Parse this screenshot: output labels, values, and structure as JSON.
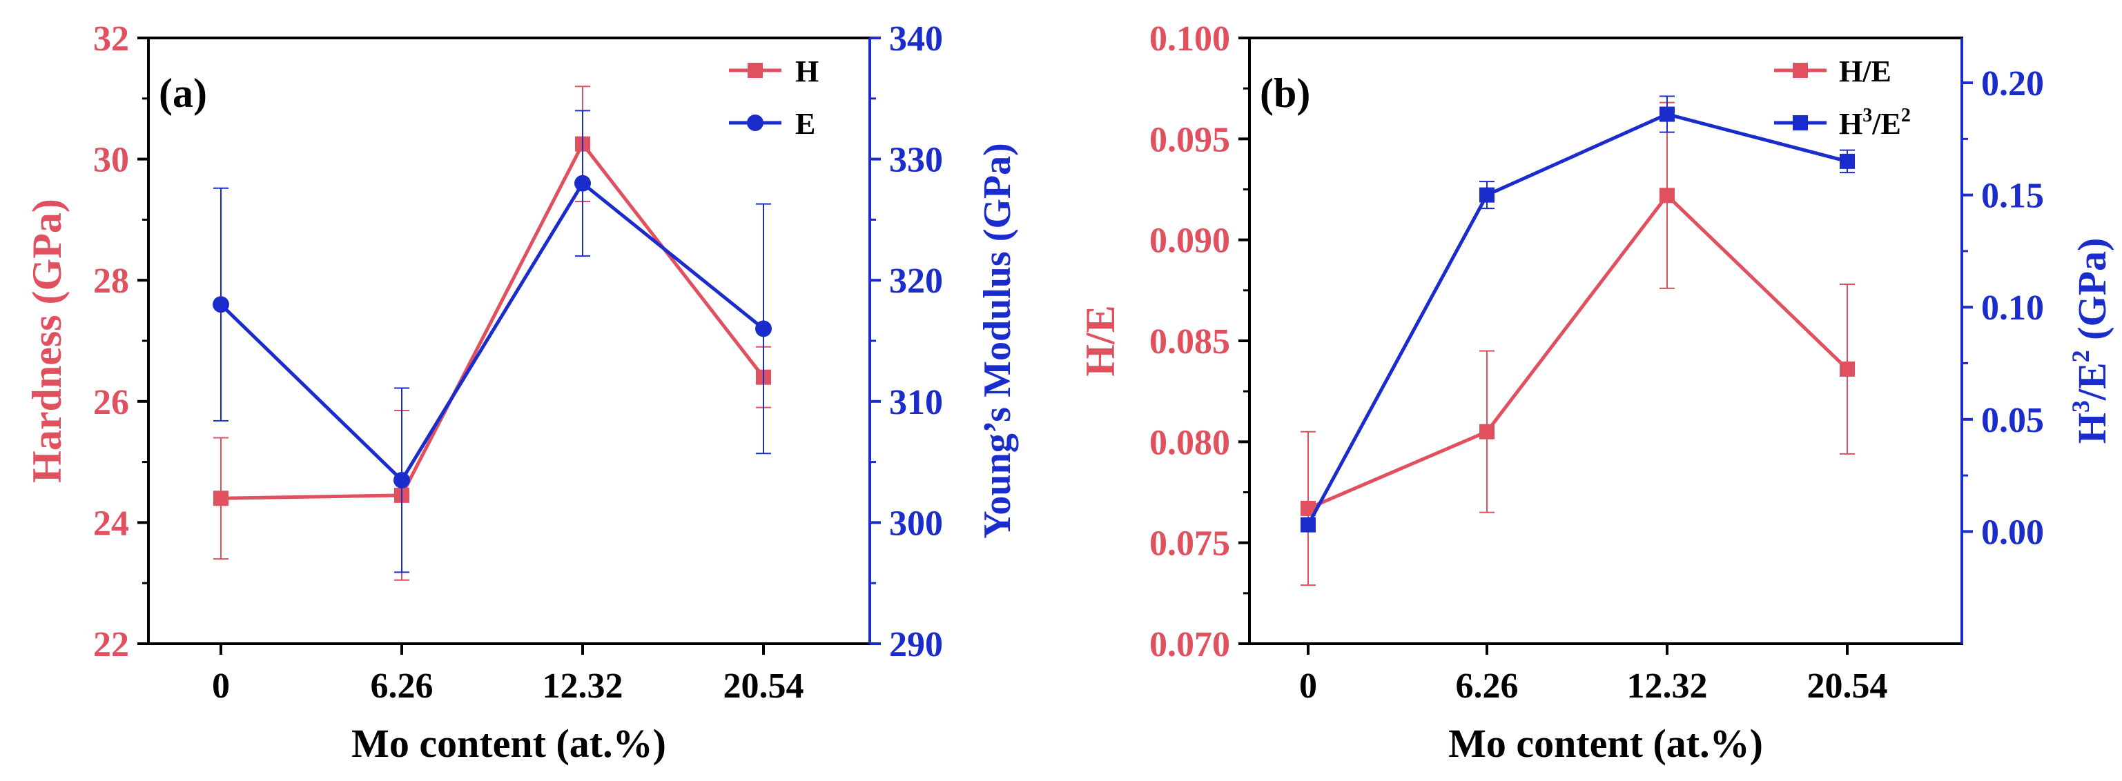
{
  "colors": {
    "red": "#e0505f",
    "blue": "#1a2ccc",
    "axis": "#000000"
  },
  "chart_data": [
    {
      "panel": "(a)",
      "type": "line",
      "categories": [
        "0",
        "6.26",
        "12.32",
        "20.54"
      ],
      "xlabel": "Mo content (at.%)",
      "ylabel_left": "Hardness (GPa)",
      "ylabel_right": "Young’s Modulus (GPa)",
      "ylim_left": [
        22,
        32
      ],
      "yticks_left": [
        "22",
        "24",
        "26",
        "28",
        "30",
        "32"
      ],
      "ylim_right": [
        290,
        340
      ],
      "yticks_right": [
        "290",
        "300",
        "310",
        "320",
        "330",
        "340"
      ],
      "legend_position": "top-right",
      "series": [
        {
          "name": "H",
          "axis": "left",
          "marker": "square",
          "color": "#e0505f",
          "values": [
            24.4,
            24.45,
            30.25,
            26.4
          ],
          "errors": [
            1.0,
            1.4,
            0.95,
            0.5
          ]
        },
        {
          "name": "E",
          "axis": "right",
          "marker": "circle",
          "color": "#1a2ccc",
          "values": [
            318,
            303.5,
            328,
            316
          ],
          "errors": [
            9.6,
            7.6,
            6.0,
            10.3
          ]
        }
      ]
    },
    {
      "panel": "(b)",
      "type": "line",
      "categories": [
        "0",
        "6.26",
        "12.32",
        "20.54"
      ],
      "xlabel": "Mo content (at.%)",
      "ylabel_left": "H/E",
      "ylabel_right_base": "H",
      "ylabel_right_sup1": "3",
      "ylabel_right_mid": "/E",
      "ylabel_right_sup2": "2",
      "ylabel_right_tail": " (GPa)",
      "ylim_left": [
        0.07,
        0.1
      ],
      "yticks_left": [
        "0.070",
        "0.075",
        "0.080",
        "0.085",
        "0.090",
        "0.095",
        "0.100"
      ],
      "ylim_right": [
        -0.05,
        0.22
      ],
      "yticks_right": [
        "0.00",
        "0.05",
        "0.10",
        "0.15",
        "0.20"
      ],
      "legend_position": "top-right",
      "series": [
        {
          "name": "H/E",
          "axis": "left",
          "marker": "square",
          "color": "#e0505f",
          "values": [
            0.0767,
            0.0805,
            0.0922,
            0.0836
          ],
          "errors": [
            0.0038,
            0.004,
            0.0046,
            0.0042
          ]
        },
        {
          "name_base": "H",
          "name_sup1": "3",
          "name_mid": "/E",
          "name_sup2": "2",
          "axis": "right",
          "marker": "square",
          "color": "#1a2ccc",
          "values": [
            0.003,
            0.15,
            0.186,
            0.165
          ],
          "errors": [
            0.002,
            0.006,
            0.008,
            0.005
          ]
        }
      ]
    }
  ]
}
